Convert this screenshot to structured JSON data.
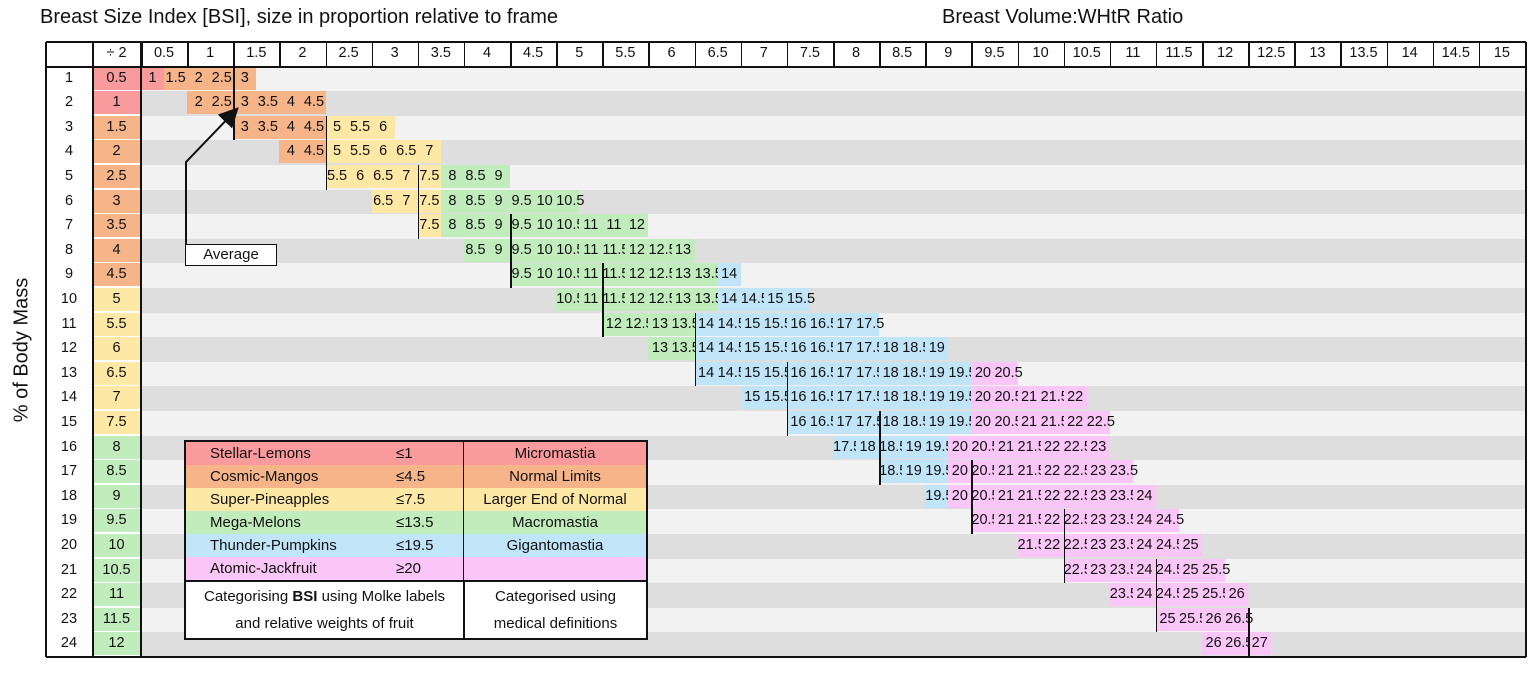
{
  "title_left": "Breast Size Index [BSI], size in proportion relative to frame",
  "title_right": "Breast Volume:WHtR Ratio",
  "y_axis_label": "% of Body Mass",
  "annotation": "Average",
  "colors": {
    "Stellar-Lemons": "#f99a9c",
    "Cosmic-Mangos": "#f6b489",
    "Super-Pineapples": "#fde9a5",
    "Mega-Melons": "#c1ecbb",
    "Thunder-Pumpkins": "#c0e4f8",
    "Atomic-Jackfruit": "#fac5f7",
    "Micromastia": "#f99a9c",
    "Normal Limits": "#f6b489",
    "Larger End of Normal": "#fde9a5",
    "Macromastia": "#c1ecbb",
    "Gigantomastia": "#c0e4f8",
    "stripe_light": "#f2f2f2",
    "stripe_dark": "#dedede"
  },
  "legend": {
    "items": [
      {
        "name": "Stellar-Lemons",
        "threshold": "≤1",
        "definition": "Micromastia"
      },
      {
        "name": "Cosmic-Mangos",
        "threshold": "≤4.5",
        "definition": "Normal Limits"
      },
      {
        "name": "Super-Pineapples",
        "threshold": "≤7.5",
        "definition": "Larger End of Normal"
      },
      {
        "name": "Mega-Melons",
        "threshold": "≤13.5",
        "definition": "Macromastia"
      },
      {
        "name": "Thunder-Pumpkins",
        "threshold": "≤19.5",
        "definition": "Gigantomastia"
      },
      {
        "name": "Atomic-Jackfruit",
        "threshold": "≥20",
        "definition": ""
      }
    ],
    "footer_left_pre": "Categorising ",
    "footer_left_bold": "BSI",
    "footer_left_post": " using Molke labels",
    "footer_left_line2": "and relative weights of fruit",
    "footer_right_line1": "Categorised using",
    "footer_right_line2": "medical definitions"
  },
  "chart_data": {
    "type": "table",
    "title": "Breast Size Index [BSI], size in proportion relative to frame",
    "secondary_title": "Breast Volume:WHtR Ratio",
    "ylabel": "% of Body Mass",
    "row_header": "",
    "div_header": "÷ 2",
    "columns": [
      "0.5",
      "1",
      "1.5",
      "2",
      "2.5",
      "3",
      "3.5",
      "4",
      "4.5",
      "5",
      "5.5",
      "6",
      "6.5",
      "7",
      "7.5",
      "8",
      "8.5",
      "9",
      "9.5",
      "10",
      "10.5",
      "11",
      "11.5",
      "12",
      "12.5",
      "13",
      "13.5",
      "14",
      "14.5",
      "15"
    ],
    "rows": [
      1,
      2,
      3,
      4,
      5,
      6,
      7,
      8,
      9,
      10,
      11,
      12,
      13,
      14,
      15,
      16,
      17,
      18,
      19,
      20,
      21,
      22,
      23,
      24
    ],
    "div_values": [
      "0.5",
      "1",
      "1.5",
      "2",
      "2.5",
      "3",
      "3.5",
      "4",
      "4.5",
      "5",
      "5.5",
      "6",
      "6.5",
      "7",
      "7.5",
      "8",
      "8.5",
      "9",
      "9.5",
      "10",
      "10.5",
      "11",
      "11.5",
      "12"
    ],
    "row_cells": [
      {
        "start_col": 0,
        "values": [
          "1",
          "1.5",
          "2",
          "2.5",
          "3"
        ]
      },
      {
        "start_col": 2,
        "values": [
          "2",
          "2.5",
          "3",
          "3.5",
          "4",
          "4.5"
        ]
      },
      {
        "start_col": 4,
        "values": [
          "3",
          "3.5",
          "4",
          "4.5",
          "5",
          "5.5",
          "6"
        ]
      },
      {
        "start_col": 6,
        "values": [
          "4",
          "4.5",
          "5",
          "5.5",
          "6",
          "6.5",
          "7"
        ]
      },
      {
        "start_col": 8,
        "values": [
          "5.5",
          "6",
          "6.5",
          "7",
          "7.5",
          "8",
          "8.5",
          "9"
        ]
      },
      {
        "start_col": 10,
        "values": [
          "6.5",
          "7",
          "7.5",
          "8",
          "8.5",
          "9",
          "9.5",
          "10",
          "10.5"
        ]
      },
      {
        "start_col": 12,
        "values": [
          "7.5",
          "8",
          "8.5",
          "9",
          "9.5",
          "10",
          "10.5",
          "11",
          "11",
          "12"
        ]
      },
      {
        "start_col": 14,
        "values": [
          "8.5",
          "9",
          "9.5",
          "10",
          "10.5",
          "11",
          "11.5",
          "12",
          "12.5",
          "13"
        ]
      },
      {
        "start_col": 16,
        "values": [
          "9.5",
          "10",
          "10.5",
          "11",
          "11.5",
          "12",
          "12.5",
          "13",
          "13.5",
          "14"
        ]
      },
      {
        "start_col": 18,
        "values": [
          "10.5",
          "11",
          "11.5",
          "12",
          "12.5",
          "13",
          "13.5",
          "14",
          "14.5",
          "15",
          "15.5"
        ]
      },
      {
        "start_col": 20,
        "values": [
          "12",
          "12.5",
          "13",
          "13.5",
          "14",
          "14.5",
          "15",
          "15.5",
          "16",
          "16.5",
          "17",
          "17.5"
        ]
      },
      {
        "start_col": 22,
        "values": [
          "13",
          "13.5",
          "14",
          "14.5",
          "15",
          "15.5",
          "16",
          "16.5",
          "17",
          "17.5",
          "18",
          "18.5",
          "19"
        ]
      },
      {
        "start_col": 24,
        "values": [
          "14",
          "14.5",
          "15",
          "15.5",
          "16",
          "16.5",
          "17",
          "17.5",
          "18",
          "18.5",
          "19",
          "19.5",
          "20",
          "20.5"
        ]
      },
      {
        "start_col": 26,
        "values": [
          "15",
          "15.5",
          "16",
          "16.5",
          "17",
          "17.5",
          "18",
          "18.5",
          "19",
          "19.5",
          "20",
          "20.5",
          "21",
          "21.5",
          "22"
        ]
      },
      {
        "start_col": 28,
        "values": [
          "16",
          "16.5",
          "17",
          "17.5",
          "18",
          "18.5",
          "19",
          "19.5",
          "20",
          "20.5",
          "21",
          "21.5",
          "22",
          "22.5"
        ]
      },
      {
        "start_col": 30,
        "values": [
          "17.5",
          "18",
          "18.5",
          "19",
          "19.5",
          "20",
          "20.5",
          "21",
          "21.5",
          "22",
          "22.5",
          "23"
        ]
      },
      {
        "start_col": 32,
        "values": [
          "18.5",
          "19",
          "19.5",
          "20",
          "20.5",
          "21",
          "21.5",
          "22",
          "22.5",
          "23",
          "23.5"
        ]
      },
      {
        "start_col": 34,
        "values": [
          "19.5",
          "20",
          "20.5",
          "21",
          "21.5",
          "22",
          "22.5",
          "23",
          "23.5",
          "24"
        ]
      },
      {
        "start_col": 36,
        "values": [
          "20.5",
          "21",
          "21.5",
          "22",
          "22.5",
          "23",
          "23.5",
          "24",
          "24.5"
        ]
      },
      {
        "start_col": 38,
        "values": [
          "21.5",
          "22",
          "22.5",
          "23",
          "23.5",
          "24",
          "24.5",
          "25"
        ]
      },
      {
        "start_col": 40,
        "values": [
          "22.5",
          "23",
          "23.5",
          "24",
          "24.5",
          "25",
          "25.5"
        ]
      },
      {
        "start_col": 42,
        "values": [
          "23.5",
          "24",
          "24.5",
          "25",
          "25.5",
          "26"
        ]
      },
      {
        "start_col": 44,
        "values": [
          "25",
          "25.5",
          "26",
          "26.5"
        ]
      },
      {
        "start_col": 46,
        "values": [
          "26",
          "26.5",
          "27"
        ]
      }
    ]
  }
}
